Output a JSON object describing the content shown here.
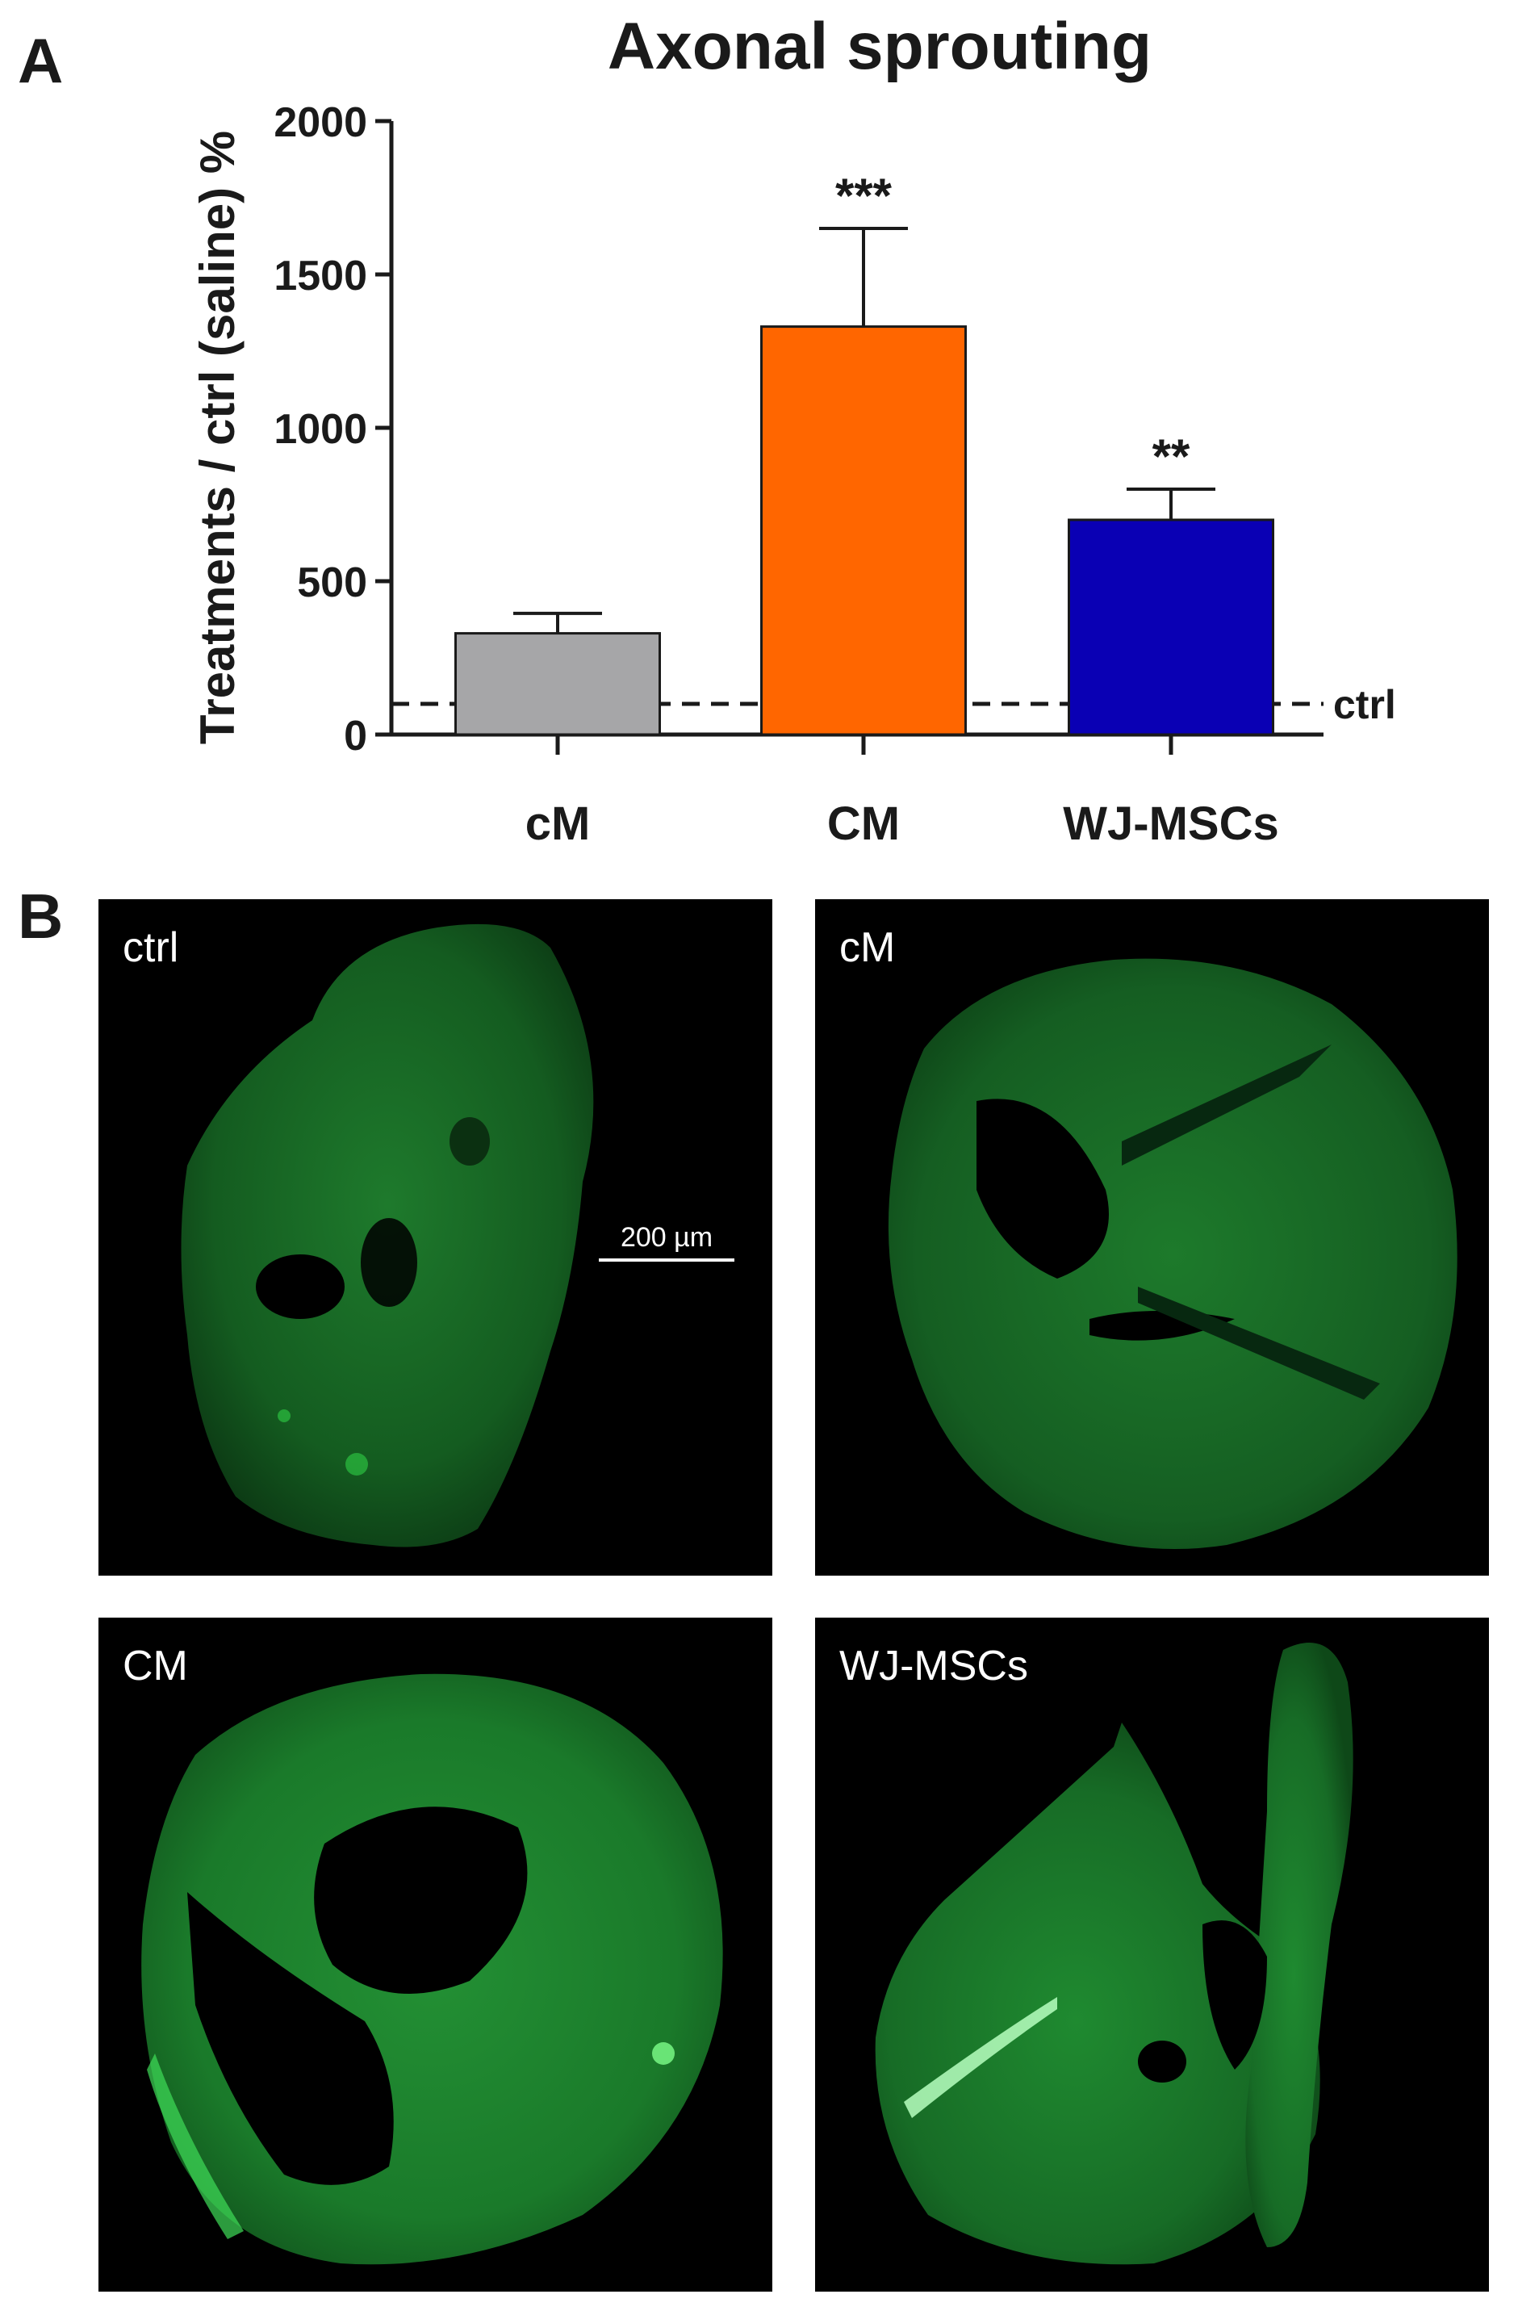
{
  "panel_a_letter": "A",
  "panel_b_letter": "B",
  "chart_data": {
    "type": "bar",
    "title": "Axonal sprouting",
    "ylabel": "Treatments / ctrl (saline) %",
    "xlabel": "",
    "categories": [
      "cM",
      "CM",
      "WJ-MSCs"
    ],
    "values": [
      330,
      1330,
      700
    ],
    "errors": [
      65,
      320,
      100
    ],
    "significance": [
      "",
      "***",
      "**"
    ],
    "colors": [
      "#a6a6a8",
      "#ff6600",
      "#0a00b4"
    ],
    "ylim": [
      0,
      2000
    ],
    "yticks": [
      "0",
      "500",
      "1000",
      "1500",
      "2000"
    ],
    "reference_line": {
      "label": "ctrl",
      "value": 100,
      "style": "dashed"
    },
    "grid": false,
    "legend": "none"
  },
  "micrographs": [
    {
      "label": "ctrl",
      "scale_bar": "200 µm"
    },
    {
      "label": "cM"
    },
    {
      "label": "CM"
    },
    {
      "label": "WJ-MSCs"
    }
  ],
  "colors": {
    "stain": "#2fd046",
    "background": "#000000"
  }
}
